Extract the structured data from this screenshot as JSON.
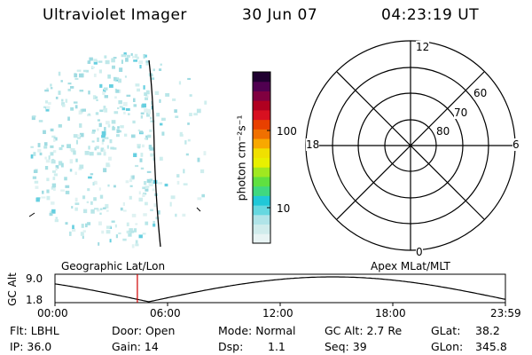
{
  "header": {
    "instrument": "Ultraviolet Imager",
    "date": "30 Jun 07",
    "time": "04:23:19 UT"
  },
  "colorbar": {
    "unit_label": "photon cm⁻²s⁻¹",
    "ticks": [
      "100",
      "10"
    ],
    "colors": [
      "#e8f4f4",
      "#d0ecec",
      "#b0e4e8",
      "#66d8e0",
      "#20c8d8",
      "#40d880",
      "#60e040",
      "#a0e820",
      "#e8f000",
      "#f0e000",
      "#f8a800",
      "#f07000",
      "#e84000",
      "#d81020",
      "#b00020",
      "#800040",
      "#500050",
      "#200030"
    ]
  },
  "polar_grid": {
    "clock_labels": [
      "12",
      "6",
      "0",
      "18"
    ],
    "lat_labels": [
      "60",
      "70",
      "80"
    ]
  },
  "timeline": {
    "left_label": "Geographic Lat/Lon",
    "right_label": "Apex MLat/MLT",
    "ytitle": "GC Alt",
    "yticks": [
      "9.0",
      "1.8"
    ],
    "xticks": [
      "00:00",
      "06:00",
      "12:00",
      "18:00",
      "23:59"
    ],
    "marker_hour": 4.39,
    "marker_color": "#d00000"
  },
  "info": {
    "flt": "Flt: LBHL",
    "door": "Door: Open",
    "mode": "Mode: Normal",
    "gc_alt": "GC Alt: 2.7 Re",
    "glat_label": "GLat:",
    "glat_value": "38.2",
    "ip": "IP: 36.0",
    "gain": "Gain: 14",
    "dsp_label": "Dsp:",
    "dsp_value": "1.1",
    "seq": "Seq: 39",
    "glon_label": "GLon:",
    "glon_value": "345.8"
  }
}
